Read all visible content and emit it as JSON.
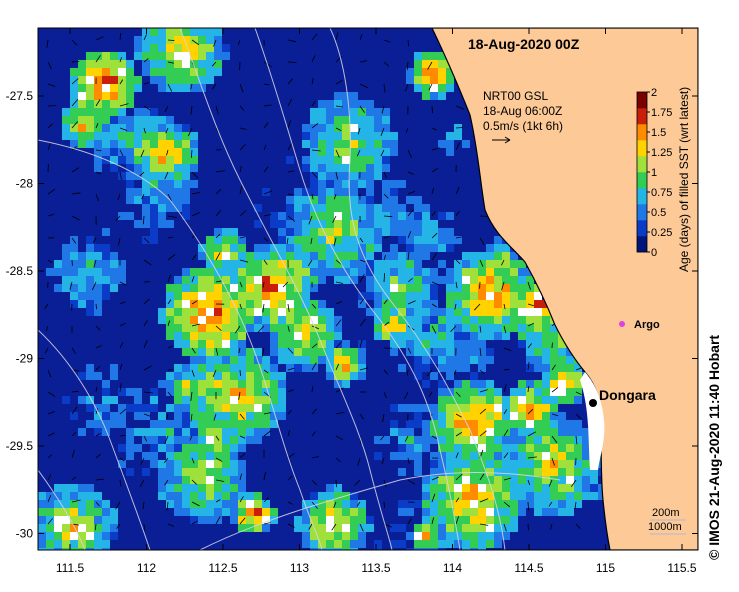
{
  "map": {
    "title": "18-Aug-2020 00Z",
    "product": {
      "line1": "NRT00 GSL",
      "line2": "18-Aug 06:00Z",
      "line3": "0.5m/s (1kt 6h)"
    },
    "lat_ticks": [
      "-27.5",
      "-28",
      "-28.5",
      "-29",
      "-29.5",
      "-30"
    ],
    "lon_ticks": [
      "111.5",
      "112",
      "112.5",
      "113",
      "113.5",
      "114",
      "114.5",
      "115",
      "115.5"
    ],
    "colorbar": {
      "label": "Age (days) of filled SST (wrt latest)",
      "ticks": [
        "0",
        "0.25",
        "0.5",
        "0.75",
        "1",
        "1.25",
        "1.5",
        "1.75",
        "2"
      ],
      "colors": [
        "#00157a",
        "#0a3cc8",
        "#1f78e6",
        "#25b4e6",
        "#33cc55",
        "#9fe03a",
        "#ffd200",
        "#ff8c00",
        "#c81e0a",
        "#7a0000"
      ]
    },
    "places": [
      {
        "name": "Dongara",
        "marker_color": "#000000"
      },
      {
        "name": "Argo",
        "marker_color": "#e040e0"
      }
    ],
    "contour_labels": [
      "200m",
      "1000m"
    ],
    "land_color": "#fcc997",
    "ocean_color": "#0a1e96",
    "copyright": "© IMOS 21-Aug-2020 11:40 Hobart"
  }
}
